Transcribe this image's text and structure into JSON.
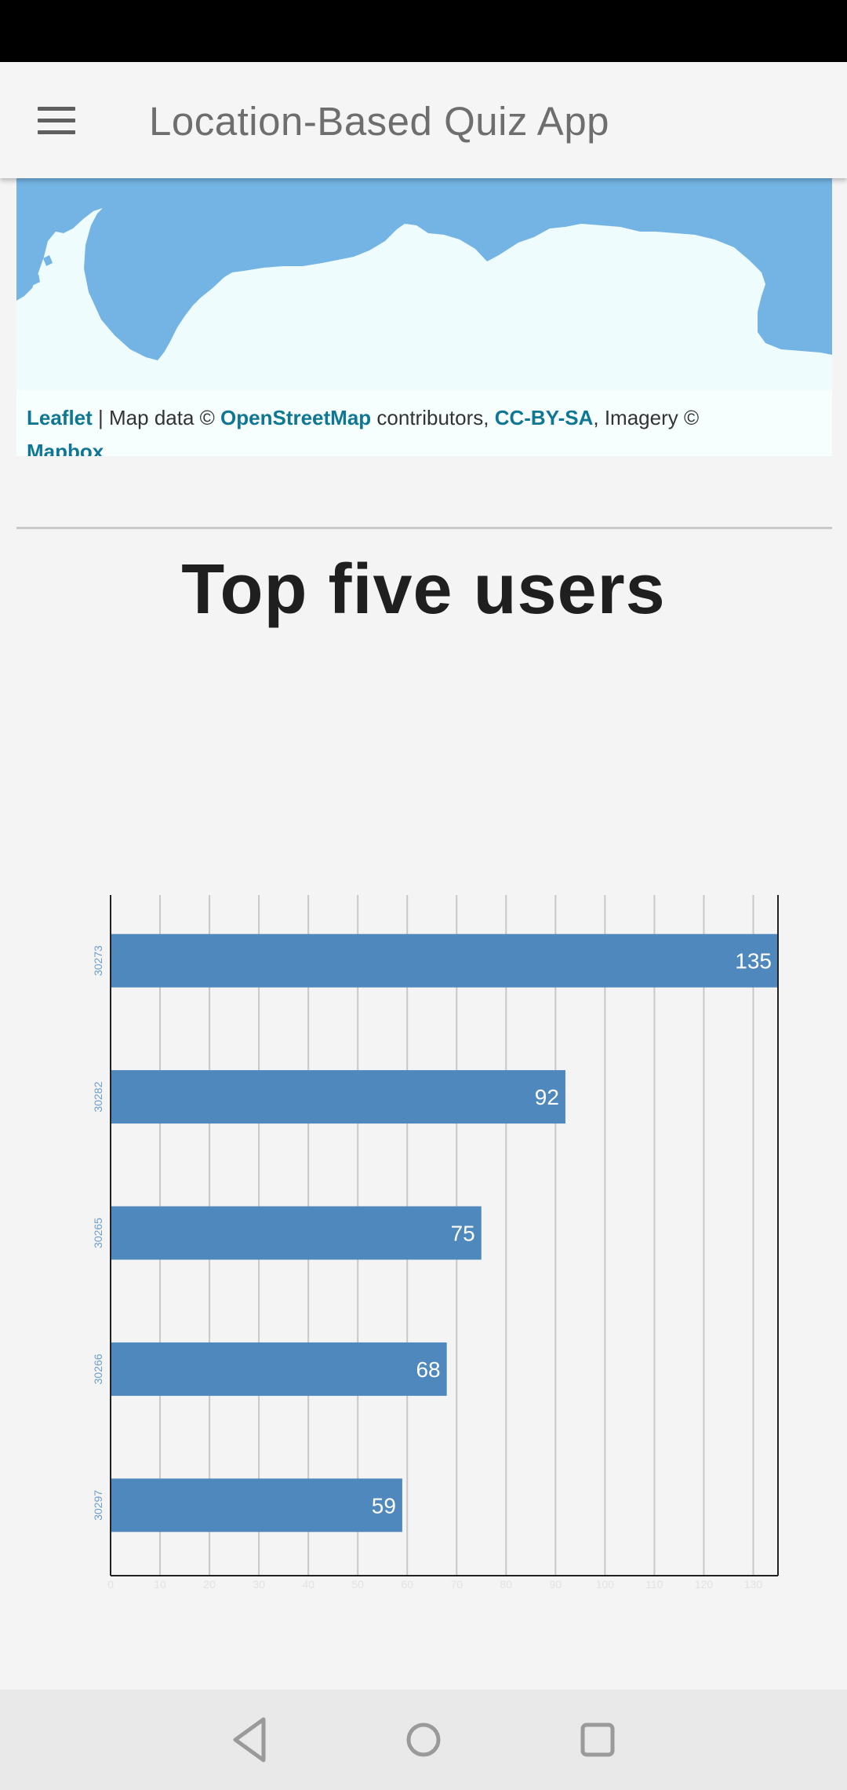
{
  "app_bar": {
    "title": "Location-Based Quiz App",
    "menu_icon": "hamburger-menu-icon"
  },
  "map": {
    "attribution": {
      "leaflet": "Leaflet",
      "sep1": " | Map data © ",
      "osm": "OpenStreetMap",
      "sep2": " contributors, ",
      "license": "CC-BY-SA",
      "sep3": ", Imagery © ",
      "mapbox": "Mapbox"
    },
    "water_color": "#74b4e4",
    "land_color": "#eefcfd"
  },
  "section": {
    "title": "Top five users"
  },
  "chart_data": {
    "type": "bar",
    "orientation": "horizontal",
    "categories": [
      "30273",
      "30282",
      "30265",
      "30266",
      "30297"
    ],
    "values": [
      135,
      92,
      75,
      68,
      59
    ],
    "xlim": [
      0,
      135
    ],
    "xticks": [
      0,
      10,
      20,
      30,
      40,
      50,
      60,
      70,
      80,
      90,
      100,
      110,
      120,
      130
    ],
    "grid": true,
    "bar_color": "#4f88bd",
    "title": "",
    "xlabel": "",
    "ylabel": ""
  },
  "nav_bar": {
    "icons": [
      "back-icon",
      "home-icon",
      "recents-icon"
    ]
  }
}
